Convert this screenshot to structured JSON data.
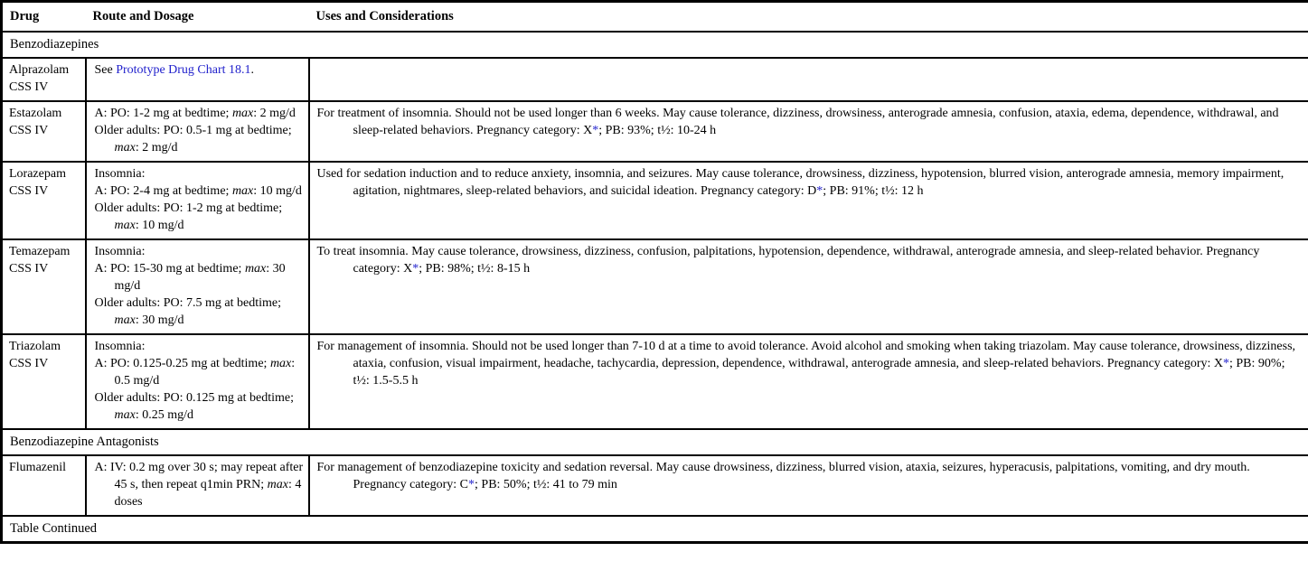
{
  "colors": {
    "link": "#2121cc",
    "border": "#000000",
    "background": "#ffffff"
  },
  "header": {
    "columns": [
      "Drug",
      "Route and Dosage",
      "Uses and Considerations"
    ]
  },
  "rows": [
    {
      "kind": "section",
      "id": "benzodiazepines",
      "label": "Benzodiazepines"
    },
    {
      "kind": "drug",
      "id": "alprazolam",
      "name": "Alprazolam",
      "schedule": "CSS IV",
      "dosage": [
        [
          {
            "t": "See "
          },
          {
            "t": "Prototype Drug Chart 18.1",
            "s": "link",
            "n": "prototype-drug-chart-link"
          },
          {
            "t": "."
          }
        ]
      ],
      "uses": []
    },
    {
      "kind": "drug",
      "id": "estazolam",
      "name": "Estazolam",
      "schedule": "CSS IV",
      "dosage": [
        [
          {
            "t": "A: PO: 1-2 mg at bedtime; "
          },
          {
            "t": "max",
            "s": "i"
          },
          {
            "t": ": 2 mg/d"
          }
        ],
        [
          {
            "t": "Older adults: PO: 0.5-1 mg at bedtime; "
          },
          {
            "t": "max",
            "s": "i"
          },
          {
            "t": ": 2 mg/d"
          }
        ]
      ],
      "uses": [
        {
          "t": "For treatment of insomnia. Should not be used longer than 6 weeks. May cause tolerance, dizziness, drowsiness, anterograde amnesia, confusion, ataxia, edema, dependence, withdrawal, and sleep-related behaviors. Pregnancy category: X"
        },
        {
          "t": "*",
          "s": "link",
          "n": "pregnancy-footnote-link"
        },
        {
          "t": "; PB: 93%; t½: 10-24 h"
        }
      ]
    },
    {
      "kind": "drug",
      "id": "lorazepam",
      "name": "Lorazepam",
      "schedule": "CSS IV",
      "dosage": [
        [
          {
            "t": "Insomnia:"
          }
        ],
        [
          {
            "t": "A: PO: 2-4 mg at bedtime; "
          },
          {
            "t": "max",
            "s": "i"
          },
          {
            "t": ": 10 mg/d"
          }
        ],
        [
          {
            "t": "Older adults: PO: 1-2 mg at bedtime; "
          },
          {
            "t": "max",
            "s": "i"
          },
          {
            "t": ": 10 mg/d"
          }
        ]
      ],
      "uses": [
        {
          "t": "Used for sedation induction and to reduce anxiety, insomnia, and seizures. May cause tolerance, drowsiness, dizziness, hypotension, blurred vision, anterograde amnesia, memory impairment, agitation, nightmares, sleep-related behaviors, and suicidal ideation. Pregnancy category: D"
        },
        {
          "t": "*",
          "s": "link",
          "n": "pregnancy-footnote-link"
        },
        {
          "t": "; PB: 91%; t½: 12 h"
        }
      ]
    },
    {
      "kind": "drug",
      "id": "temazepam",
      "name": "Temazepam",
      "schedule": "CSS IV",
      "dosage": [
        [
          {
            "t": "Insomnia:"
          }
        ],
        [
          {
            "t": "A: PO: 15-30 mg at bedtime; "
          },
          {
            "t": "max",
            "s": "i"
          },
          {
            "t": ": 30 mg/d"
          }
        ],
        [
          {
            "t": "Older adults: PO: 7.5 mg at bedtime; "
          },
          {
            "t": "max",
            "s": "i"
          },
          {
            "t": ": 30 mg/d"
          }
        ]
      ],
      "uses": [
        {
          "t": "To treat insomnia. May cause tolerance, drowsiness, dizziness, confusion, palpitations, hypotension, dependence, withdrawal, anterograde amnesia, and sleep-related behavior. Pregnancy category: X"
        },
        {
          "t": "*",
          "s": "link",
          "n": "pregnancy-footnote-link"
        },
        {
          "t": "; PB: 98%; t½: 8-15 h"
        }
      ]
    },
    {
      "kind": "drug",
      "id": "triazolam",
      "name": "Triazolam",
      "schedule": "CSS IV",
      "dosage": [
        [
          {
            "t": "Insomnia:"
          }
        ],
        [
          {
            "t": "A: PO: 0.125-0.25 mg at bedtime; "
          },
          {
            "t": "max",
            "s": "i"
          },
          {
            "t": ": 0.5 mg/d"
          }
        ],
        [
          {
            "t": "Older adults: PO: 0.125 mg at bedtime; "
          },
          {
            "t": "max",
            "s": "i"
          },
          {
            "t": ": 0.25 mg/d"
          }
        ]
      ],
      "uses": [
        {
          "t": "For management of insomnia. Should not be used longer than 7-10 d at a time to avoid tolerance. Avoid alcohol and smoking when taking triazolam. May cause tolerance, drowsiness, dizziness, ataxia, confusion, visual impairment, headache, tachycardia, depression, dependence, withdrawal, anterograde amnesia, and sleep-related behaviors. Pregnancy category: X"
        },
        {
          "t": "*",
          "s": "link",
          "n": "pregnancy-footnote-link"
        },
        {
          "t": "; PB: 90%; t½: 1.5-5.5 h"
        }
      ]
    },
    {
      "kind": "section",
      "id": "benzodiazepine-antagonists",
      "label": "Benzodiazepine Antagonists"
    },
    {
      "kind": "drug",
      "id": "flumazenil",
      "name": "Flumazenil",
      "schedule": "",
      "dosage": [
        [
          {
            "t": "A: IV: 0.2 mg over 30 s; may repeat after 45 s, then repeat q1min PRN; "
          },
          {
            "t": "max",
            "s": "i"
          },
          {
            "t": ": 4 doses"
          }
        ]
      ],
      "uses": [
        {
          "t": "For management of benzodiazepine toxicity and sedation reversal. May cause drowsiness, dizziness, blurred vision, ataxia, seizures, hyperacusis, palpitations, vomiting, and dry mouth. Pregnancy category: C"
        },
        {
          "t": "*",
          "s": "link",
          "n": "pregnancy-footnote-link"
        },
        {
          "t": "; PB: 50%; t½: 41 to 79 min"
        }
      ]
    },
    {
      "kind": "note",
      "id": "table-continued",
      "label": "Table Continued"
    }
  ]
}
